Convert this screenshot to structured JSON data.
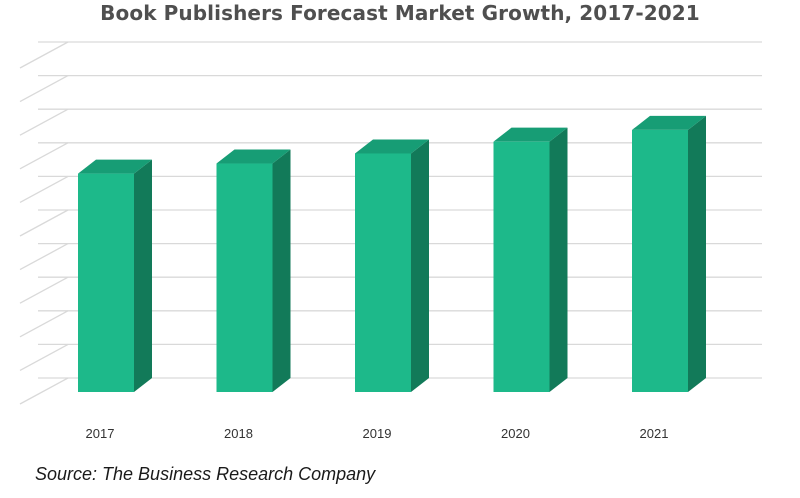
{
  "chart_data": {
    "type": "bar",
    "title": "Book Publishers Forecast Market Growth, 2017-2021",
    "categories": [
      "2017",
      "2018",
      "2019",
      "2020",
      "2021"
    ],
    "values": [
      65,
      68,
      71,
      74.5,
      78
    ],
    "ylim": [
      0,
      100
    ],
    "grid": true,
    "legend": "none",
    "colors": {
      "front": "#1db98a",
      "side": "#127a59",
      "top": "#179d75",
      "grid": "#d9d9d9"
    }
  },
  "source": "Source: The Business Research Company"
}
